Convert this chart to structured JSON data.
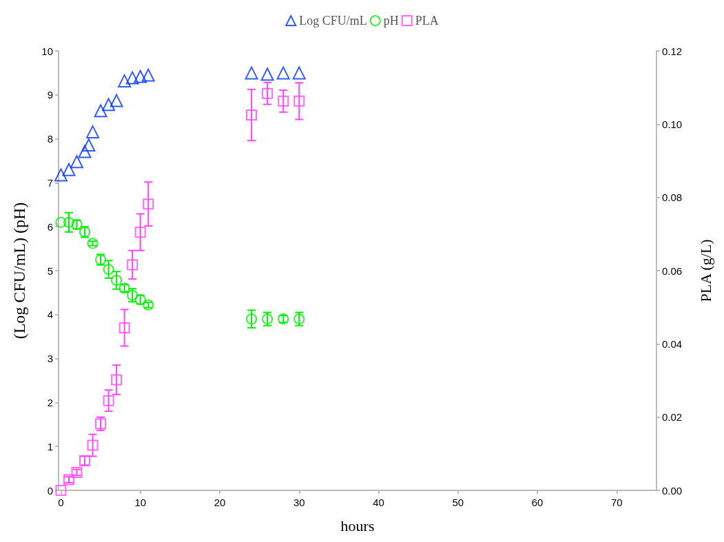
{
  "chart_data": {
    "type": "scatter",
    "xlabel": "hours",
    "ylabel": "(Log CFU/mL) (pH)",
    "y2label": "PLA (g/L)",
    "xlim": [
      -0.3,
      75
    ],
    "xticks": [
      0,
      10,
      20,
      30,
      40,
      50,
      60,
      70
    ],
    "ylim": [
      0,
      10
    ],
    "yticks": [
      0,
      1,
      2,
      3,
      4,
      5,
      6,
      7,
      8,
      9,
      10
    ],
    "y2lim": [
      0,
      0.12
    ],
    "y2ticks": [
      {
        "value": 0,
        "label": "0.00"
      },
      {
        "value": 0.02,
        "label": "0.02"
      },
      {
        "value": 0.04,
        "label": "0.04"
      },
      {
        "value": 0.06,
        "label": "0.06"
      },
      {
        "value": 0.08,
        "label": "0.08"
      },
      {
        "value": 0.1,
        "label": "0.10"
      },
      {
        "value": 0.12,
        "label": "0.12"
      }
    ],
    "grid": false,
    "legend": "top",
    "series": [
      {
        "name": "Log CFU/mL",
        "color": "#0033ff",
        "marker": "triangle",
        "x": [
          0,
          1,
          2,
          3,
          3.5,
          4,
          5,
          6,
          7,
          8,
          9,
          10,
          11,
          24,
          26,
          28,
          30
        ],
        "values": [
          7.18,
          7.3,
          7.48,
          7.71,
          7.86,
          8.16,
          8.64,
          8.78,
          8.87,
          9.32,
          9.39,
          9.42,
          9.45,
          9.5,
          9.47,
          9.5,
          9.5
        ]
      },
      {
        "name": "pH",
        "color": "#00ee00",
        "marker": "circle",
        "x": [
          0,
          1,
          2,
          3,
          4,
          5,
          6,
          7,
          8,
          9,
          10,
          11,
          24,
          26,
          28,
          30
        ],
        "values": [
          6.1,
          6.1,
          6.05,
          5.88,
          5.62,
          5.25,
          5.03,
          4.78,
          4.6,
          4.44,
          4.34,
          4.22,
          3.9,
          3.9,
          3.9,
          3.9
        ],
        "errors": [
          null,
          0.22,
          0.1,
          0.12,
          0.05,
          0.12,
          0.2,
          0.2,
          0.08,
          0.15,
          0.1,
          0.06,
          0.2,
          0.15,
          0.08,
          0.15
        ]
      },
      {
        "name": "PLA",
        "color": "#ff44ff",
        "marker": "square",
        "axis": "y2",
        "x": [
          0,
          1,
          2,
          3,
          4,
          5,
          6,
          7,
          8,
          9,
          10,
          11,
          24,
          26,
          28,
          30
        ],
        "values": [
          0,
          0.0029,
          0.0049,
          0.0081,
          0.0123,
          0.0182,
          0.0245,
          0.0302,
          0.0444,
          0.0616,
          0.0705,
          0.0782,
          0.1025,
          0.1084,
          0.1063,
          0.1063
        ],
        "errors": [
          null,
          0.0008,
          0.0008,
          0.0012,
          0.003,
          0.0018,
          0.0029,
          0.004,
          0.005,
          0.0039,
          0.005,
          0.006,
          0.007,
          0.003,
          0.003,
          0.005
        ]
      }
    ]
  }
}
